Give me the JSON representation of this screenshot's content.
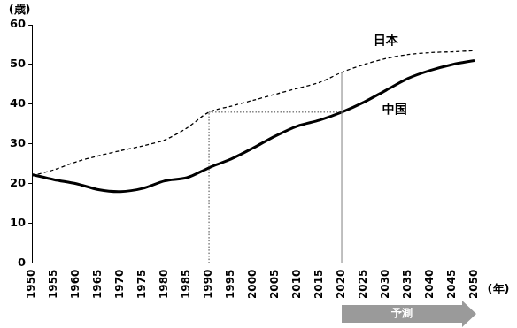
{
  "chart_data": {
    "type": "line",
    "x_label": "(年)",
    "y_label": "(歳)",
    "x": [
      1950,
      1955,
      1960,
      1965,
      1970,
      1975,
      1980,
      1985,
      1990,
      1995,
      2000,
      2005,
      2010,
      2015,
      2020,
      2025,
      2030,
      2035,
      2040,
      2045,
      2050
    ],
    "series": [
      {
        "name": "日本",
        "color": "#000000",
        "line_style": "dashed",
        "marker": "none",
        "values": [
          22,
          23.5,
          25.5,
          27,
          28.3,
          29.5,
          31,
          34,
          38,
          39.5,
          41,
          42.5,
          44,
          45.5,
          48,
          50,
          51.5,
          52.5,
          53,
          53.2,
          53.5
        ]
      },
      {
        "name": "中国",
        "color": "#000000",
        "line_style": "solid",
        "marker": "none",
        "values": [
          22.3,
          21,
          20,
          18.5,
          18,
          18.8,
          20.7,
          21.5,
          24,
          26.2,
          29,
          32,
          34.5,
          36,
          38,
          40.5,
          43.5,
          46.5,
          48.5,
          50,
          51
        ]
      }
    ],
    "xlim": [
      1950,
      2050
    ],
    "xticks": [
      1950,
      1955,
      1960,
      1965,
      1970,
      1975,
      1980,
      1985,
      1990,
      1995,
      2000,
      2005,
      2010,
      2015,
      2020,
      2025,
      2030,
      2035,
      2040,
      2045,
      2050
    ],
    "ylim": [
      0,
      60
    ],
    "yticks": [
      0,
      10,
      20,
      30,
      40,
      50,
      60
    ],
    "grid": false,
    "guides": [
      {
        "x": [
          1990,
          1990
        ],
        "y": [
          0,
          38
        ],
        "line_style": "dotted"
      },
      {
        "x": [
          1990,
          2020
        ],
        "y": [
          38,
          38
        ],
        "line_style": "dotted"
      },
      {
        "x": [
          2020,
          2020
        ],
        "y": [
          0,
          48
        ],
        "line_style": "solid"
      }
    ],
    "forecast": {
      "label": "予測",
      "x": [
        2020,
        2050
      ]
    }
  }
}
